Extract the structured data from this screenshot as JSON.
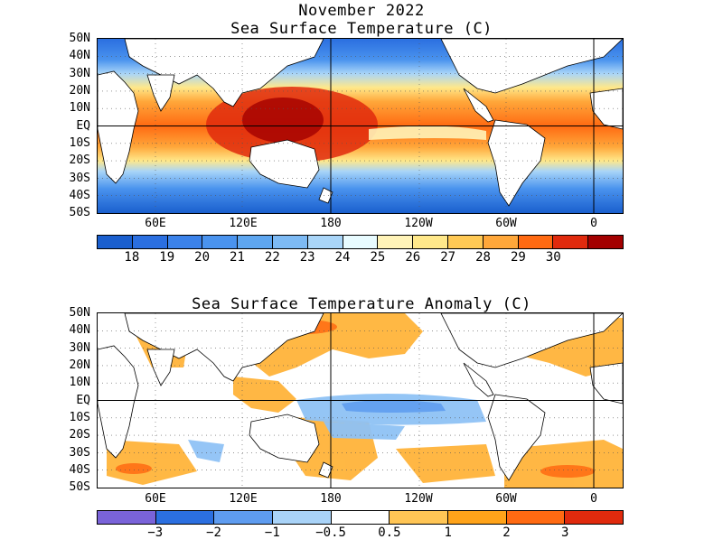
{
  "titles": {
    "month": "November 2022",
    "sst": "Sea Surface Temperature (C)",
    "anomaly": "Sea Surface Temperature Anomaly (C)"
  },
  "lat_labels": [
    "50N",
    "40N",
    "30N",
    "20N",
    "10N",
    "EQ",
    "10S",
    "20S",
    "30S",
    "40S",
    "50S"
  ],
  "lon_labels": [
    "60E",
    "120E",
    "180",
    "120W",
    "60W",
    "0"
  ],
  "sst_colorbar": {
    "colors": [
      "#1a5fce",
      "#2b6fe0",
      "#3b82ea",
      "#4a93ee",
      "#5ea6f0",
      "#7dbaf4",
      "#a9d5f8",
      "#e8fbff",
      "#fff3b8",
      "#ffe88a",
      "#ffc955",
      "#ffa73a",
      "#ff6a12",
      "#e02a0d",
      "#a30000"
    ],
    "labels": [
      "18",
      "19",
      "20",
      "21",
      "22",
      "23",
      "24",
      "25",
      "26",
      "27",
      "28",
      "29",
      "30"
    ]
  },
  "anom_colorbar": {
    "colors": [
      "#7a63d9",
      "#2b6fe0",
      "#5e9cf0",
      "#a9d3f8",
      "#ffffff",
      "#ffc555",
      "#ffa31a",
      "#ff6a12",
      "#e02a0d"
    ],
    "labels": [
      "−3",
      "−2",
      "−1",
      "−0.5",
      "0.5",
      "1",
      "2",
      "3"
    ]
  },
  "map_colors": {
    "land": "#ffffff",
    "sst_cold": "#2b6fe0",
    "sst_warm": "#ffc955",
    "sst_hot": "#e02a0d",
    "anom_pos": "#ffb43a",
    "anom_neg": "#8fc2f5"
  }
}
